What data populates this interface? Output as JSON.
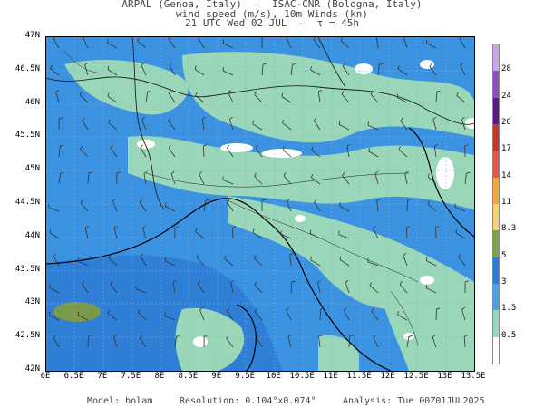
{
  "header": {
    "line1": "ARPAL (Genoa, Italy)  —  ISAC-CNR (Bologna, Italy)",
    "line2": "wind speed (m/s), 10m Winds (kn)",
    "line3": "21 UTC Wed 02 JUL  —  τ = 45h"
  },
  "map": {
    "lat_labels": [
      "47N",
      "46.5N",
      "46N",
      "45.5N",
      "45N",
      "44.5N",
      "44N",
      "43.5N",
      "43N",
      "42.5N",
      "42N"
    ],
    "lon_labels": [
      "6E",
      "6.5E",
      "7E",
      "7.5E",
      "8E",
      "8.5E",
      "9E",
      "9.5E",
      "10E",
      "10.5E",
      "11E",
      "11.5E",
      "12E",
      "12.5E",
      "13E",
      "13.5E"
    ],
    "colors": {
      "sea_low": "#3a92e0",
      "sea_deep": "#2f7fd6",
      "land_low": "#9ad6b8",
      "calm": "#ffffff",
      "strong": "#7a9a4a",
      "coast": "#000000"
    }
  },
  "colorbar": {
    "labels": [
      "28",
      "24",
      "20",
      "17",
      "14",
      "11",
      "8.3",
      "5",
      "3",
      "1.5",
      "0.5"
    ],
    "colors": [
      "#c9a6e8",
      "#8d4fc4",
      "#5a1a8a",
      "#c0392b",
      "#e05a4a",
      "#f2a640",
      "#f5d27a",
      "#7da34f",
      "#2b7fd8",
      "#4aa3e6",
      "#98d8c0",
      "#ffffff"
    ]
  },
  "footer": {
    "model": "Model: bolam",
    "resolution": "Resolution: 0.104°x0.074°",
    "analysis": "Analysis: Tue 00Z01JUL2025"
  }
}
